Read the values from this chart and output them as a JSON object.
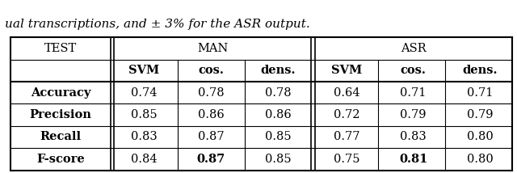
{
  "caption": "ual transcriptions, and ± 3% for the ASR output.",
  "rows": [
    [
      "Accuracy",
      "0.74",
      "0.78",
      "0.78",
      "0.64",
      "0.71",
      "0.71"
    ],
    [
      "Precision",
      "0.85",
      "0.86",
      "0.86",
      "0.72",
      "0.79",
      "0.79"
    ],
    [
      "Recall",
      "0.83",
      "0.87",
      "0.85",
      "0.77",
      "0.83",
      "0.80"
    ],
    [
      "F-score",
      "0.84",
      "0.87",
      "0.85",
      "0.75",
      "0.81",
      "0.80"
    ]
  ],
  "bold_data_cells": [
    [
      3,
      1
    ],
    [
      3,
      4
    ]
  ],
  "background_color": "#ffffff",
  "border_color": "#000000",
  "text_color": "#000000",
  "font_size": 10.5,
  "caption_font_size": 11,
  "figsize": [
    6.4,
    2.14
  ],
  "dpi": 100,
  "caption_italic": true
}
